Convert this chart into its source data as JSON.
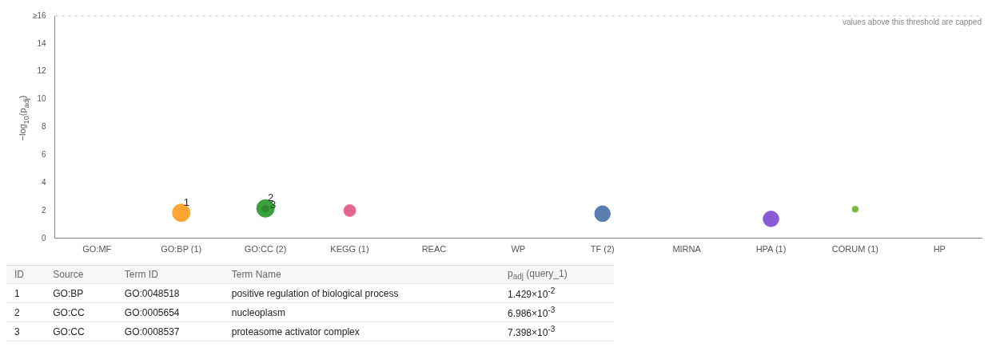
{
  "chart_data": {
    "type": "bubble",
    "categories": [
      "GO:MF",
      "GO:BP (1)",
      "GO:CC (2)",
      "KEGG (1)",
      "REAC",
      "WP",
      "TF (2)",
      "MIRNA",
      "HPA (1)",
      "CORUM (1)",
      "HP"
    ],
    "ylabel": "−log$_{10}$(p$_{adj}$)",
    "ylim": [
      0,
      16
    ],
    "yticks": [
      0,
      2,
      4,
      6,
      8,
      10,
      12,
      14,
      {
        "value": 16,
        "label": "≥16"
      }
    ],
    "grid": false,
    "legend": false,
    "series": [
      {
        "x": [
          "GO:BP (1)",
          "GO:CC (2)",
          "GO:CC (2)",
          "KEGG (1)",
          "TF (2)",
          "TF (2)",
          "HPA (1)",
          "CORUM (1)"
        ],
        "values": [
          1.845,
          2.156,
          2.131,
          2.0,
          1.8,
          1.75,
          1.4,
          2.1
        ],
        "sizes": [
          1,
          1,
          0.15,
          0.45,
          0.75,
          0.75,
          0.8,
          0.12
        ],
        "colors": [
          "#ffa534",
          "#3aa23a",
          "#2e8a2e",
          "#e5668f",
          "#5b7db0",
          "#5b7db0",
          "#8a5bd6",
          "#7ab840"
        ]
      }
    ],
    "ref_lines": [
      {
        "axis": "y",
        "value": 16,
        "label": "values above this threshold are capped",
        "color": "#cccccc",
        "line_style": "dashed"
      }
    ],
    "annotations": [
      {
        "text": "1",
        "x": "GO:BP (1)",
        "y": 1.845
      },
      {
        "text": "2",
        "x": "GO:CC (2)",
        "y": 2.156
      },
      {
        "text": "3",
        "x": "GO:CC (2)",
        "y": 2.131
      },
      "ID",
      "Source",
      "Term ID",
      "Term Name",
      "p$_{adj}$ (query_1)",
      "1",
      "GO:BP",
      "GO:0048518",
      "positive regulation of biological process",
      "1.429×10$^{-2}$",
      "2",
      "GO:CC",
      "GO:0005654",
      "nucleoplasm",
      "6.986×10$^{-3}$",
      "3",
      "GO:CC",
      "GO:0008537",
      "proteasome activator complex",
      "7.398×10$^{-3}$"
    ]
  }
}
